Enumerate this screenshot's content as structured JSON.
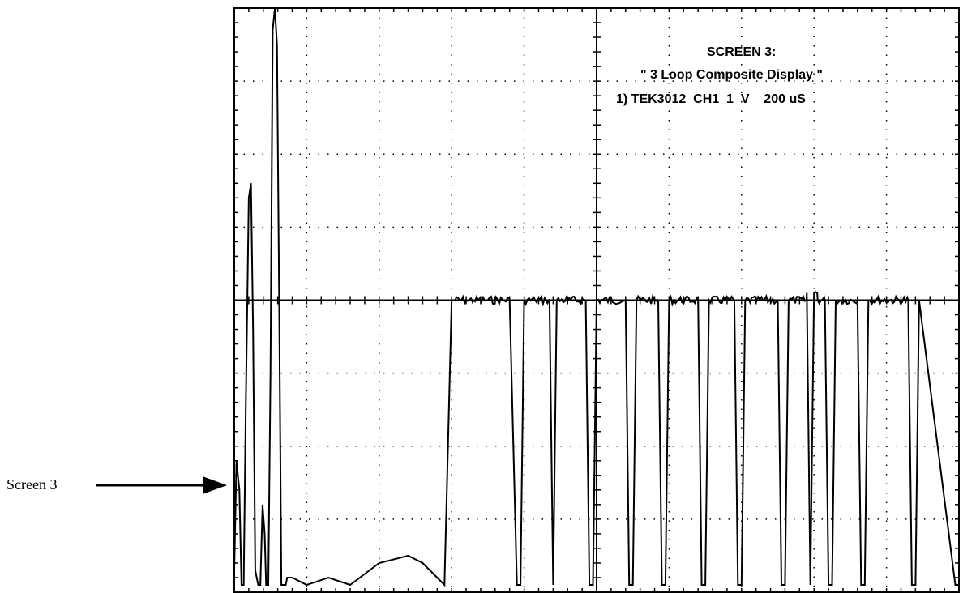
{
  "side_label": "Screen 3",
  "colors": {
    "trace": "#000000",
    "grid": "#000000",
    "background": "#ffffff"
  },
  "chart_data": {
    "type": "line",
    "title": "SCREEN 3:",
    "subtitle": "\" 3 Loop Composite Display \"",
    "annotation": "1) TEK3012  CH1  1  V    200 uS",
    "grid": true,
    "xlim": [
      0,
      10
    ],
    "ylim": [
      -4,
      4
    ],
    "x": [
      0.0,
      0.03,
      0.07,
      0.1,
      0.13,
      0.16,
      0.2,
      0.23,
      0.26,
      0.29,
      0.33,
      0.36,
      0.39,
      0.42,
      0.44,
      0.47,
      0.5,
      0.53,
      0.56,
      0.59,
      0.62,
      0.65,
      0.68,
      0.71,
      0.73,
      0.8,
      1.0,
      1.3,
      1.6,
      2.0,
      2.4,
      2.6,
      2.9,
      3.0,
      3.2,
      3.3,
      3.5,
      3.8,
      3.9,
      3.95,
      4.0,
      4.15,
      4.3,
      4.35,
      4.4,
      4.45,
      4.6,
      4.85,
      4.9,
      4.95,
      5.0,
      5.4,
      5.45,
      5.5,
      5.55,
      5.85,
      5.9,
      5.95,
      6.0,
      6.4,
      6.45,
      6.5,
      6.55,
      6.9,
      6.95,
      7.0,
      7.05,
      7.5,
      7.55,
      7.6,
      7.65,
      7.9,
      7.95,
      8.0,
      8.05,
      8.15,
      8.2,
      8.25,
      8.3,
      8.6,
      8.65,
      8.7,
      8.75,
      9.3,
      9.35,
      9.4,
      9.45,
      9.95,
      10.0
    ],
    "values": [
      -3.7,
      -2.2,
      -2.6,
      -3.9,
      -3.9,
      -1.4,
      1.4,
      1.6,
      -0.4,
      -3.7,
      -3.9,
      -3.9,
      -2.8,
      -3.2,
      -3.9,
      -3.9,
      -1.0,
      3.7,
      4.0,
      3.5,
      0.0,
      -3.9,
      -3.9,
      -3.9,
      -3.8,
      -3.8,
      -3.9,
      -3.8,
      -3.9,
      -3.6,
      -3.5,
      -3.6,
      -3.9,
      0.0,
      0.0,
      0.0,
      0.0,
      0.0,
      -3.9,
      -3.9,
      0.0,
      0.0,
      0.0,
      0.0,
      -3.9,
      0.0,
      0.0,
      0.0,
      -3.9,
      -3.9,
      0.0,
      0.0,
      -3.9,
      -3.9,
      0.0,
      0.0,
      -3.9,
      -3.9,
      0.0,
      0.0,
      -3.9,
      -3.9,
      0.0,
      0.0,
      -3.9,
      -3.9,
      0.0,
      0.0,
      -3.9,
      -3.9,
      0.0,
      0.1,
      -3.9,
      0.1,
      0.0,
      0.0,
      -3.9,
      -3.9,
      0.0,
      0.0,
      -3.9,
      -3.9,
      0.0,
      0.0,
      -3.9,
      -3.9,
      0.0,
      -3.9,
      -3.9
    ]
  }
}
